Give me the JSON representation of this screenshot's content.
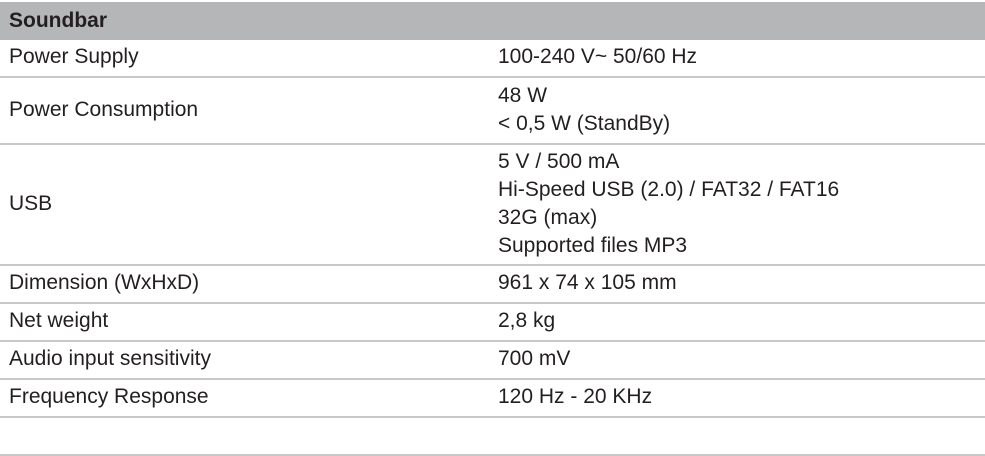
{
  "table": {
    "title": "Soundbar",
    "rows": [
      {
        "label": "Power Supply",
        "values": [
          "100-240 V~ 50/60 Hz"
        ]
      },
      {
        "label": "Power Consumption",
        "values": [
          "48 W",
          "< 0,5 W (StandBy)"
        ]
      },
      {
        "label": "USB",
        "values": [
          "5 V / 500 mA",
          "Hi-Speed USB (2.0) / FAT32 / FAT16",
          "32G (max)",
          "Supported files MP3"
        ]
      },
      {
        "label": "Dimension (WxHxD)",
        "values": [
          "961 x 74 x 105 mm"
        ]
      },
      {
        "label": "Net weight",
        "values": [
          "2,8 kg"
        ]
      },
      {
        "label": "Audio input sensitivity",
        "values": [
          "700 mV"
        ]
      },
      {
        "label": "Frequency Response",
        "values": [
          "120 Hz - 20 KHz"
        ]
      },
      {
        "label": "",
        "values": []
      }
    ]
  }
}
